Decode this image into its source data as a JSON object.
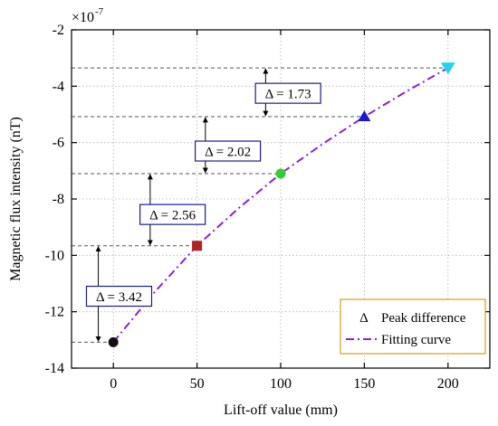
{
  "chart_data": {
    "type": "scatter",
    "title": "",
    "xlabel": "Lift-off value (mm)",
    "ylabel": "Magnetic flux intensity (nT)",
    "y_multiplier_base": "×10",
    "y_multiplier_exp": "-7",
    "xlim": [
      -25,
      225
    ],
    "ylim": [
      -14,
      -2
    ],
    "x_ticks": [
      0,
      50,
      100,
      150,
      200
    ],
    "y_ticks": [
      -14,
      -12,
      -10,
      -8,
      -6,
      -4,
      -2
    ],
    "x_tick_labels": [
      "0",
      "50",
      "100",
      "150",
      "200"
    ],
    "y_tick_labels": [
      "-14",
      "-12",
      "-10",
      "-8",
      "-6",
      "-4",
      "-2"
    ],
    "grid": true,
    "points": [
      {
        "x": 0,
        "y": -13.08,
        "marker": "circle",
        "color": "#111111"
      },
      {
        "x": 50,
        "y": -9.66,
        "marker": "square",
        "color": "#b22222"
      },
      {
        "x": 100,
        "y": -7.1,
        "marker": "circle",
        "color": "#33cc33"
      },
      {
        "x": 150,
        "y": -5.08,
        "marker": "triangle-up",
        "color": "#1a1acc"
      },
      {
        "x": 200,
        "y": -3.35,
        "marker": "triangle-down",
        "color": "#22d4f0"
      }
    ],
    "fitting_curve": {
      "name": "Fitting curve",
      "color": "#8a1ee0",
      "style": "dash-dot",
      "x": [
        0,
        25,
        50,
        75,
        100,
        125,
        150,
        175,
        200
      ],
      "y": [
        -13.08,
        -11.28,
        -9.66,
        -8.32,
        -7.1,
        -6.05,
        -5.08,
        -4.19,
        -3.35
      ]
    },
    "annotations": [
      {
        "label": "Δ = 3.42",
        "x_arrow": -9,
        "y_from": -13.08,
        "y_to": -9.66,
        "box_x": -15,
        "box_y": -11.45
      },
      {
        "label": "Δ = 2.56",
        "x_arrow": 22,
        "y_from": -9.66,
        "y_to": -7.1,
        "box_x": 17,
        "box_y": -8.55
      },
      {
        "label": "Δ = 2.02",
        "x_arrow": 55,
        "y_from": -7.1,
        "y_to": -5.08,
        "box_x": 50,
        "box_y": -6.3
      },
      {
        "label": "Δ = 1.73",
        "x_arrow": 91,
        "y_from": -5.08,
        "y_to": -3.35,
        "box_x": 86,
        "box_y": -4.25
      }
    ],
    "guide_lines": [
      {
        "y": -13.08,
        "x_end": 0
      },
      {
        "y": -9.66,
        "x_end": 50
      },
      {
        "y": -7.1,
        "x_end": 100
      },
      {
        "y": -5.08,
        "x_end": 150
      },
      {
        "y": -3.35,
        "x_end": 200
      }
    ],
    "legend": {
      "position": "bottom-right",
      "border_color": "#d4a017",
      "items": [
        {
          "symbol": "Δ",
          "label": "Peak difference"
        },
        {
          "symbol": "line",
          "label": "Fitting curve"
        }
      ]
    }
  }
}
